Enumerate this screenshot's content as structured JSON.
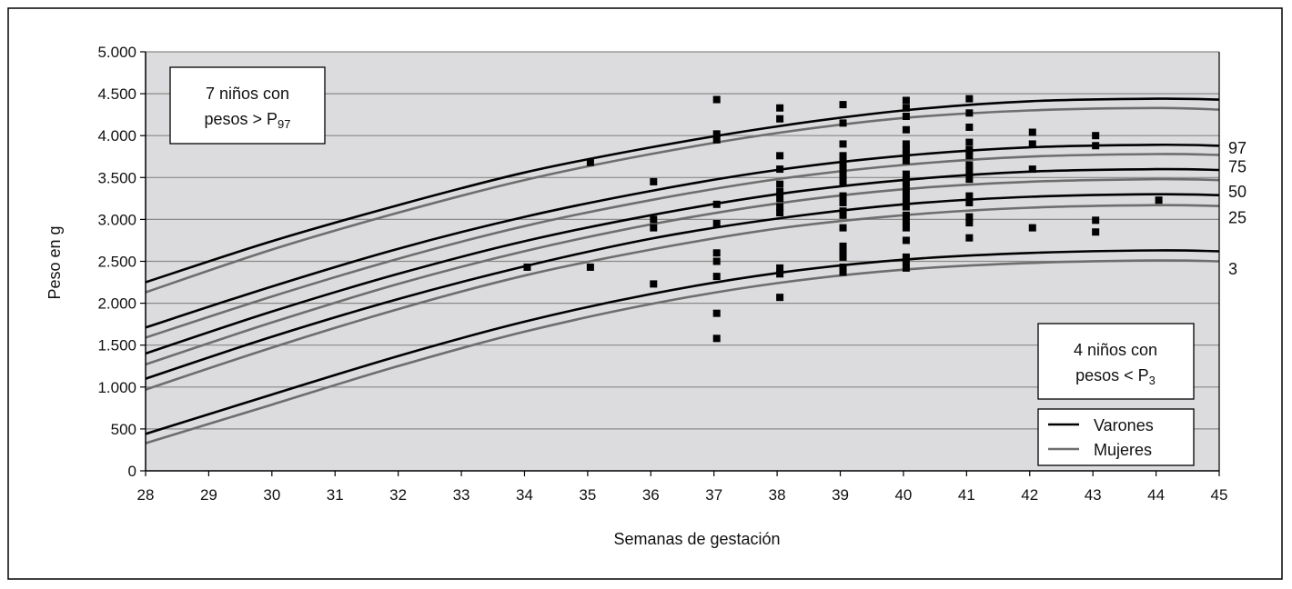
{
  "chart_data": {
    "type": "line",
    "title": "",
    "xlabel": "Semanas de gestación",
    "ylabel": "Peso en g",
    "xlim": [
      28,
      45
    ],
    "ylim": [
      0,
      5000
    ],
    "x_ticks": [
      "28",
      "29",
      "30",
      "31",
      "32",
      "33",
      "34",
      "35",
      "36",
      "37",
      "38",
      "39",
      "40",
      "41",
      "42",
      "43",
      "44",
      "45"
    ],
    "y_ticks": [
      {
        "value": 0,
        "label": "0"
      },
      {
        "value": 500,
        "label": "500"
      },
      {
        "value": 1000,
        "label": "1.000"
      },
      {
        "value": 1500,
        "label": "1.500"
      },
      {
        "value": 2000,
        "label": "2.000"
      },
      {
        "value": 2500,
        "label": "2.500"
      },
      {
        "value": 3000,
        "label": "3.000"
      },
      {
        "value": 3500,
        "label": "3.500"
      },
      {
        "value": 4000,
        "label": "4.000"
      },
      {
        "value": 4500,
        "label": "4.500"
      },
      {
        "value": 5000,
        "label": "5.000"
      }
    ],
    "grid": true,
    "legend": {
      "position": "bottom-right",
      "entries": [
        {
          "label": "Varones",
          "color": "#000000"
        },
        {
          "label": "Mujeres",
          "color": "#6e6e6e"
        }
      ]
    },
    "percentile_labels": [
      {
        "label": "97",
        "value": 3850
      },
      {
        "label": "75",
        "value": 3630
      },
      {
        "label": "50",
        "value": 3330
      },
      {
        "label": "25",
        "value": 3020
      },
      {
        "label": "3",
        "value": 2410
      }
    ],
    "x": [
      28,
      30,
      32,
      34,
      36,
      38,
      40,
      42,
      44,
      45
    ],
    "series": [
      {
        "name": "Varones",
        "percentile": "97",
        "color": "#000000",
        "values": [
          2250,
          2740,
          3170,
          3560,
          3860,
          4110,
          4300,
          4410,
          4440,
          4430
        ]
      },
      {
        "name": "Mujeres",
        "percentile": "97",
        "color": "#6e6e6e",
        "values": [
          2130,
          2640,
          3080,
          3470,
          3780,
          4030,
          4210,
          4300,
          4330,
          4310
        ]
      },
      {
        "name": "Varones",
        "percentile": "75",
        "color": "#000000",
        "values": [
          1710,
          2200,
          2650,
          3030,
          3340,
          3590,
          3760,
          3860,
          3890,
          3880
        ]
      },
      {
        "name": "Mujeres",
        "percentile": "75",
        "color": "#6e6e6e",
        "values": [
          1590,
          2080,
          2530,
          2920,
          3230,
          3480,
          3650,
          3750,
          3780,
          3770
        ]
      },
      {
        "name": "Varones",
        "percentile": "50",
        "color": "#000000",
        "values": [
          1400,
          1900,
          2350,
          2740,
          3050,
          3300,
          3470,
          3570,
          3600,
          3590
        ]
      },
      {
        "name": "Mujeres",
        "percentile": "50",
        "color": "#6e6e6e",
        "values": [
          1270,
          1770,
          2230,
          2620,
          2940,
          3190,
          3360,
          3450,
          3480,
          3470
        ]
      },
      {
        "name": "Varones",
        "percentile": "25",
        "color": "#000000",
        "values": [
          1100,
          1600,
          2050,
          2440,
          2770,
          3010,
          3180,
          3270,
          3300,
          3290
        ]
      },
      {
        "name": "Mujeres",
        "percentile": "25",
        "color": "#6e6e6e",
        "values": [
          970,
          1470,
          1930,
          2330,
          2640,
          2890,
          3050,
          3140,
          3170,
          3160
        ]
      },
      {
        "name": "Varones",
        "percentile": "3",
        "color": "#000000",
        "values": [
          440,
          910,
          1370,
          1780,
          2110,
          2360,
          2520,
          2600,
          2630,
          2620
        ]
      },
      {
        "name": "Mujeres",
        "percentile": "3",
        "color": "#6e6e6e",
        "values": [
          330,
          790,
          1250,
          1660,
          1990,
          2240,
          2400,
          2480,
          2510,
          2500
        ]
      }
    ],
    "scatter": {
      "name": "Niños",
      "points": [
        [
          34,
          2430
        ],
        [
          35,
          3680
        ],
        [
          35,
          2430
        ],
        [
          36,
          3450
        ],
        [
          36,
          3000
        ],
        [
          36,
          2900
        ],
        [
          36,
          2230
        ],
        [
          37,
          4430
        ],
        [
          37,
          4020
        ],
        [
          37,
          3950
        ],
        [
          37,
          3180
        ],
        [
          37,
          2950
        ],
        [
          37,
          2600
        ],
        [
          37,
          2500
        ],
        [
          37,
          2320
        ],
        [
          37,
          1880
        ],
        [
          37,
          1580
        ],
        [
          38,
          4330
        ],
        [
          38,
          4200
        ],
        [
          38,
          3760
        ],
        [
          38,
          3600
        ],
        [
          38,
          3420
        ],
        [
          38,
          3330
        ],
        [
          38,
          3250
        ],
        [
          38,
          3150
        ],
        [
          38,
          3080
        ],
        [
          38,
          2420
        ],
        [
          38,
          2350
        ],
        [
          38,
          2070
        ],
        [
          39,
          4370
        ],
        [
          39,
          4150
        ],
        [
          39,
          3900
        ],
        [
          39,
          3760
        ],
        [
          39,
          3680
        ],
        [
          39,
          3600
        ],
        [
          39,
          3530
        ],
        [
          39,
          3450
        ],
        [
          39,
          3280
        ],
        [
          39,
          3200
        ],
        [
          39,
          3100
        ],
        [
          39,
          3050
        ],
        [
          39,
          2900
        ],
        [
          39,
          2680
        ],
        [
          39,
          2600
        ],
        [
          39,
          2550
        ],
        [
          39,
          2430
        ],
        [
          39,
          2370
        ],
        [
          40,
          4420
        ],
        [
          40,
          4330
        ],
        [
          40,
          4230
        ],
        [
          40,
          4070
        ],
        [
          40,
          3900
        ],
        [
          40,
          3840
        ],
        [
          40,
          3780
        ],
        [
          40,
          3700
        ],
        [
          40,
          3540
        ],
        [
          40,
          3460
        ],
        [
          40,
          3380
        ],
        [
          40,
          3300
        ],
        [
          40,
          3220
        ],
        [
          40,
          3150
        ],
        [
          40,
          3050
        ],
        [
          40,
          2980
        ],
        [
          40,
          2900
        ],
        [
          40,
          2750
        ],
        [
          40,
          2550
        ],
        [
          40,
          2500
        ],
        [
          40,
          2420
        ],
        [
          41,
          4440
        ],
        [
          41,
          4270
        ],
        [
          41,
          4100
        ],
        [
          41,
          3920
        ],
        [
          41,
          3830
        ],
        [
          41,
          3760
        ],
        [
          41,
          3650
        ],
        [
          41,
          3580
        ],
        [
          41,
          3480
        ],
        [
          41,
          3280
        ],
        [
          41,
          3200
        ],
        [
          41,
          3030
        ],
        [
          41,
          2960
        ],
        [
          41,
          2780
        ],
        [
          42,
          4040
        ],
        [
          42,
          3900
        ],
        [
          42,
          3600
        ],
        [
          42,
          2900
        ],
        [
          43,
          4000
        ],
        [
          43,
          3880
        ],
        [
          43,
          2990
        ],
        [
          43,
          2850
        ],
        [
          44,
          3230
        ]
      ]
    },
    "annotations": [
      {
        "text_line1": "7 niños con",
        "text_line2": "pesos > P",
        "subscript": "97",
        "position": "top-left"
      },
      {
        "text_line1": "4 niños con",
        "text_line2": "pesos < P",
        "subscript": "3",
        "position": "bottom-right"
      }
    ]
  }
}
